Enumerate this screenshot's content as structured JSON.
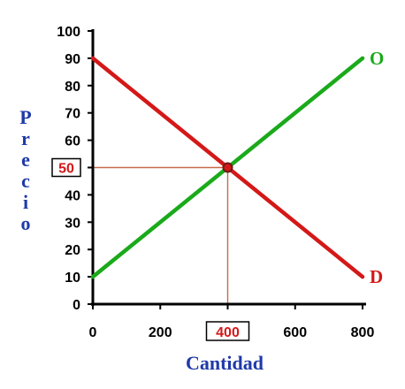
{
  "chart_data": {
    "type": "line",
    "xlabel": "Cantidad",
    "ylabel": "Precio",
    "xlim": [
      0,
      800
    ],
    "ylim": [
      0,
      100
    ],
    "x_ticks": [
      "0",
      "200",
      "400",
      "600",
      "800"
    ],
    "y_ticks": [
      "0",
      "10",
      "20",
      "30",
      "40",
      "50",
      "60",
      "70",
      "80",
      "90",
      "100"
    ],
    "series": [
      {
        "name": "O",
        "color": "#1aaa1a",
        "x": [
          0,
          800
        ],
        "y": [
          10,
          90
        ]
      },
      {
        "name": "D",
        "color": "#d41818",
        "x": [
          0,
          800
        ],
        "y": [
          90,
          10
        ]
      }
    ],
    "equilibrium": {
      "x": 400,
      "y": 50,
      "x_label": "400",
      "y_label": "50",
      "color": "#d41818"
    },
    "grid": false
  }
}
